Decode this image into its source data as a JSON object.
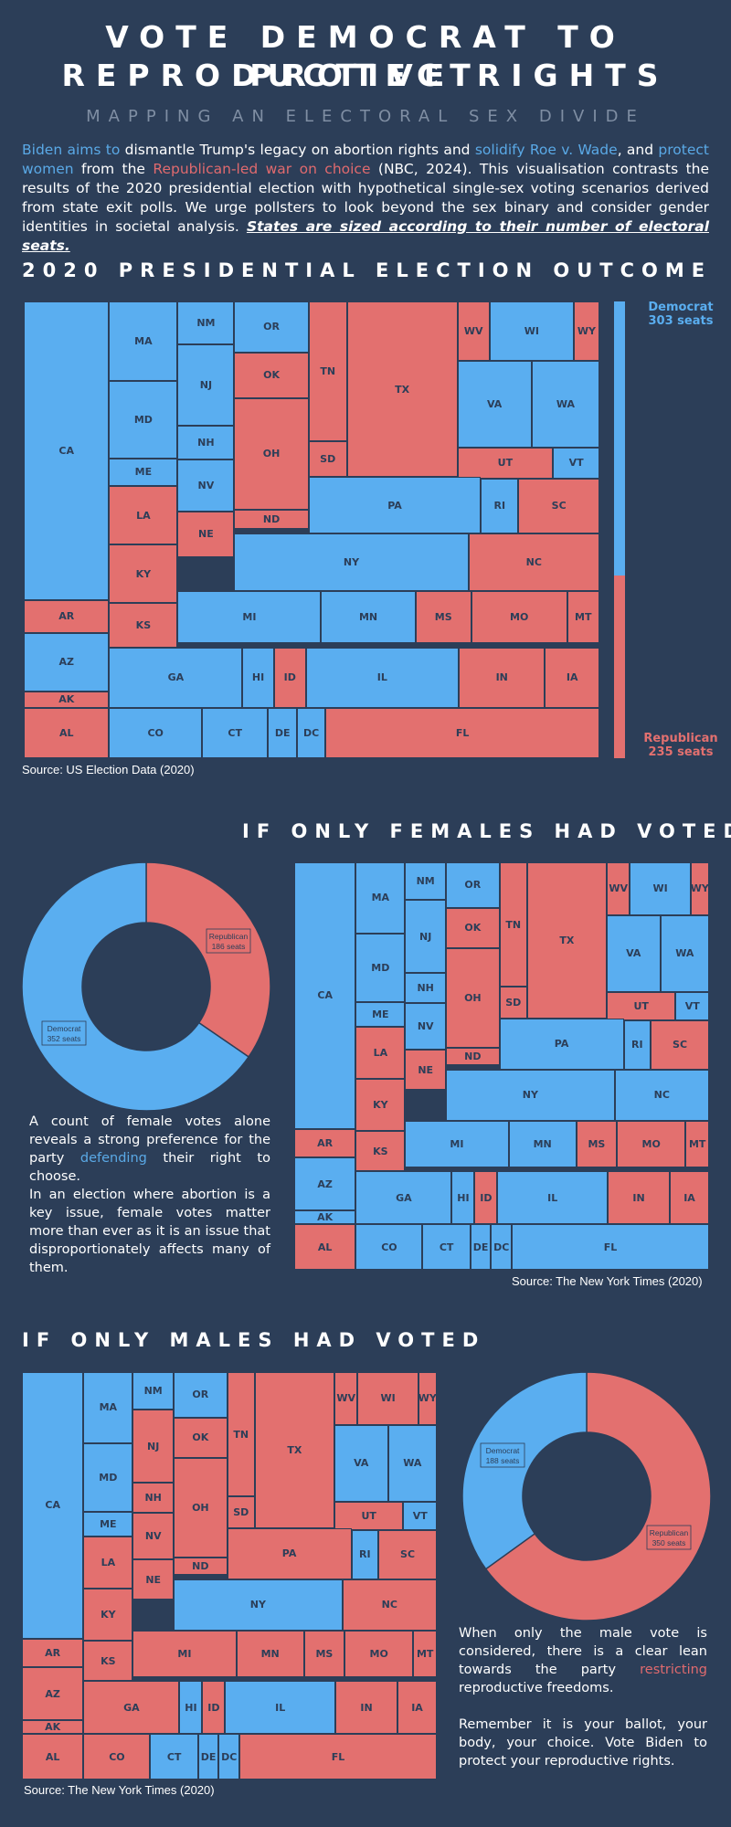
{
  "header": {
    "title_line1": "VOTE DEMOCRAT TO PROTECT",
    "title_line2": "REPRODUCTIVE RIGHTS",
    "subtitle": "MAPPING AN ELECTORAL SEX DIVIDE"
  },
  "intro": {
    "p1": "Biden aims to",
    "p2": " dismantle Trump's legacy on abortion rights and ",
    "p3": "solidify Roe v. Wade",
    "p4": ", and ",
    "p5": "protect women",
    "p6": " from the ",
    "p7": "Republican-led war on choice",
    "p8": " (NBC, 2024). This visualisation contrasts the results of the 2020 presidential election with hypothetical single-sex voting scenarios derived from state exit polls. We urge pollsters to look beyond the sex binary  and consider gender identities in societal analysis. ",
    "p9": "States are sized according to their number of electoral seats."
  },
  "colors": {
    "democrat": "#5aaef0",
    "republican": "#e3706f",
    "background": "#2c3e58"
  },
  "section1": {
    "heading": "2020 PRESIDENTIAL ELECTION OUTCOME",
    "source": "Source: US Election Data (2020)",
    "legend_dem": "Democrat",
    "legend_dem_seats": "303 seats",
    "legend_rep": "Republican",
    "legend_rep_seats": "235 seats"
  },
  "section2": {
    "heading": "IF ONLY FEMALES HAD VOTED",
    "source": "Source: The New York Times (2020)",
    "text1": "A count of female votes alone reveals a strong preference for the party ",
    "text1_hl": "defending",
    "text1_end": " their right to choose.",
    "text2": "In an election where abortion is a key issue, female votes matter more than ever as it is an issue that disproportionately affects many of them."
  },
  "section3": {
    "heading": "IF ONLY MALES HAD VOTED",
    "source": "Source: The New York Times (2020)",
    "text1": "When only the male vote is considered, there is a clear lean towards the party ",
    "text1_hl": "restricting",
    "text1_end": " reproductive freedoms.",
    "text2": "Remember it is your ballot, your body, your choice. Vote Biden to protect your reproductive rights."
  },
  "chart_data": [
    {
      "type": "treemap",
      "title": "2020 PRESIDENTIAL ELECTION OUTCOME",
      "totals": {
        "Democrat": 303,
        "Republican": 235
      },
      "states": [
        [
          "CA",
          "D"
        ],
        [
          "AR",
          "R"
        ],
        [
          "AZ",
          "D"
        ],
        [
          "AK",
          "R"
        ],
        [
          "AL",
          "R"
        ],
        [
          "MA",
          "D"
        ],
        [
          "MD",
          "D"
        ],
        [
          "ME",
          "D"
        ],
        [
          "LA",
          "R"
        ],
        [
          "KY",
          "R"
        ],
        [
          "KS",
          "R"
        ],
        [
          "NM",
          "D"
        ],
        [
          "NJ",
          "D"
        ],
        [
          "NH",
          "D"
        ],
        [
          "NV",
          "D"
        ],
        [
          "NE",
          "R"
        ],
        [
          "OR",
          "D"
        ],
        [
          "OK",
          "R"
        ],
        [
          "OH",
          "R"
        ],
        [
          "ND",
          "R"
        ],
        [
          "TN",
          "R"
        ],
        [
          "SD",
          "R"
        ],
        [
          "TX",
          "R"
        ],
        [
          "WV",
          "R"
        ],
        [
          "WI",
          "D"
        ],
        [
          "WY",
          "R"
        ],
        [
          "VA",
          "D"
        ],
        [
          "WA",
          "D"
        ],
        [
          "UT",
          "R"
        ],
        [
          "VT",
          "D"
        ],
        [
          "PA",
          "D"
        ],
        [
          "RI",
          "D"
        ],
        [
          "SC",
          "R"
        ],
        [
          "NY",
          "D"
        ],
        [
          "NC",
          "R"
        ],
        [
          "MI",
          "D"
        ],
        [
          "MN",
          "D"
        ],
        [
          "MS",
          "R"
        ],
        [
          "MO",
          "R"
        ],
        [
          "MT",
          "R"
        ],
        [
          "GA",
          "D"
        ],
        [
          "HI",
          "D"
        ],
        [
          "ID",
          "R"
        ],
        [
          "IL",
          "D"
        ],
        [
          "IN",
          "R"
        ],
        [
          "IA",
          "R"
        ],
        [
          "CO",
          "D"
        ],
        [
          "CT",
          "D"
        ],
        [
          "DE",
          "D"
        ],
        [
          "DC",
          "D"
        ],
        [
          "FL",
          "R"
        ]
      ]
    },
    {
      "type": "pie",
      "title": "IF ONLY FEMALES HAD VOTED",
      "slices": [
        {
          "label": "Democrat",
          "value": 352,
          "text": "352 seats"
        },
        {
          "label": "Republican",
          "value": 186,
          "text": "186 seats"
        }
      ],
      "states": [
        [
          "CA",
          "D"
        ],
        [
          "AR",
          "R"
        ],
        [
          "AZ",
          "D"
        ],
        [
          "AK",
          "D"
        ],
        [
          "AL",
          "R"
        ],
        [
          "MA",
          "D"
        ],
        [
          "MD",
          "D"
        ],
        [
          "ME",
          "D"
        ],
        [
          "LA",
          "R"
        ],
        [
          "KY",
          "R"
        ],
        [
          "KS",
          "R"
        ],
        [
          "NM",
          "D"
        ],
        [
          "NJ",
          "D"
        ],
        [
          "NH",
          "D"
        ],
        [
          "NV",
          "D"
        ],
        [
          "NE",
          "R"
        ],
        [
          "OR",
          "D"
        ],
        [
          "OK",
          "R"
        ],
        [
          "OH",
          "R"
        ],
        [
          "ND",
          "R"
        ],
        [
          "TN",
          "R"
        ],
        [
          "SD",
          "R"
        ],
        [
          "TX",
          "R"
        ],
        [
          "WV",
          "R"
        ],
        [
          "WI",
          "D"
        ],
        [
          "WY",
          "R"
        ],
        [
          "VA",
          "D"
        ],
        [
          "WA",
          "D"
        ],
        [
          "UT",
          "R"
        ],
        [
          "VT",
          "D"
        ],
        [
          "PA",
          "D"
        ],
        [
          "RI",
          "D"
        ],
        [
          "SC",
          "R"
        ],
        [
          "NY",
          "D"
        ],
        [
          "NC",
          "D"
        ],
        [
          "MI",
          "D"
        ],
        [
          "MN",
          "D"
        ],
        [
          "MS",
          "R"
        ],
        [
          "MO",
          "R"
        ],
        [
          "MT",
          "R"
        ],
        [
          "GA",
          "D"
        ],
        [
          "HI",
          "D"
        ],
        [
          "ID",
          "R"
        ],
        [
          "IL",
          "D"
        ],
        [
          "IN",
          "R"
        ],
        [
          "IA",
          "R"
        ],
        [
          "CO",
          "D"
        ],
        [
          "CT",
          "D"
        ],
        [
          "DE",
          "D"
        ],
        [
          "DC",
          "D"
        ],
        [
          "FL",
          "D"
        ]
      ]
    },
    {
      "type": "pie",
      "title": "IF ONLY MALES HAD VOTED",
      "slices": [
        {
          "label": "Democrat",
          "value": 188,
          "text": "188 seats"
        },
        {
          "label": "Republican",
          "value": 350,
          "text": "350 seats"
        }
      ],
      "states": [
        [
          "CA",
          "D"
        ],
        [
          "AR",
          "R"
        ],
        [
          "AZ",
          "R"
        ],
        [
          "AK",
          "R"
        ],
        [
          "AL",
          "R"
        ],
        [
          "MA",
          "D"
        ],
        [
          "MD",
          "D"
        ],
        [
          "ME",
          "D"
        ],
        [
          "LA",
          "R"
        ],
        [
          "KY",
          "R"
        ],
        [
          "KS",
          "R"
        ],
        [
          "NM",
          "D"
        ],
        [
          "NJ",
          "R"
        ],
        [
          "NH",
          "R"
        ],
        [
          "NV",
          "R"
        ],
        [
          "NE",
          "R"
        ],
        [
          "OR",
          "D"
        ],
        [
          "OK",
          "R"
        ],
        [
          "OH",
          "R"
        ],
        [
          "ND",
          "R"
        ],
        [
          "TN",
          "R"
        ],
        [
          "SD",
          "R"
        ],
        [
          "TX",
          "R"
        ],
        [
          "WV",
          "R"
        ],
        [
          "WI",
          "R"
        ],
        [
          "WY",
          "R"
        ],
        [
          "VA",
          "D"
        ],
        [
          "WA",
          "D"
        ],
        [
          "UT",
          "R"
        ],
        [
          "VT",
          "D"
        ],
        [
          "PA",
          "R"
        ],
        [
          "RI",
          "D"
        ],
        [
          "SC",
          "R"
        ],
        [
          "NY",
          "D"
        ],
        [
          "NC",
          "R"
        ],
        [
          "MI",
          "R"
        ],
        [
          "MN",
          "R"
        ],
        [
          "MS",
          "R"
        ],
        [
          "MO",
          "R"
        ],
        [
          "MT",
          "R"
        ],
        [
          "GA",
          "R"
        ],
        [
          "HI",
          "D"
        ],
        [
          "ID",
          "R"
        ],
        [
          "IL",
          "D"
        ],
        [
          "IN",
          "R"
        ],
        [
          "IA",
          "R"
        ],
        [
          "CO",
          "R"
        ],
        [
          "CT",
          "D"
        ],
        [
          "DE",
          "D"
        ],
        [
          "DC",
          "D"
        ],
        [
          "FL",
          "R"
        ]
      ]
    }
  ]
}
